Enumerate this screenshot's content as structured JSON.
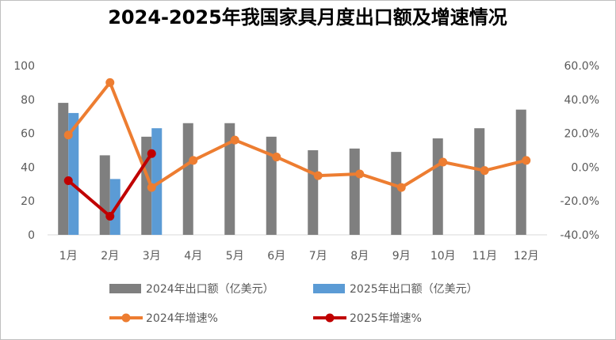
{
  "chart_data": {
    "type": "bar+line",
    "title": "2024-2025年我国家具月度出口额及增速情况",
    "categories": [
      "1月",
      "2月",
      "3月",
      "4月",
      "5月",
      "6月",
      "7月",
      "8月",
      "9月",
      "10月",
      "11月",
      "12月"
    ],
    "y_left": {
      "range": [
        0,
        100
      ],
      "ticks": [
        "0",
        "20",
        "40",
        "60",
        "80",
        "100"
      ],
      "tick_values": [
        0,
        20,
        40,
        60,
        80,
        100
      ]
    },
    "y_right": {
      "range": [
        -40,
        60
      ],
      "ticks": [
        "-40.0%",
        "-20.0%",
        "0.0%",
        "20.0%",
        "40.0%",
        "60.0%"
      ],
      "tick_values": [
        -40,
        -20,
        0,
        20,
        40,
        60
      ]
    },
    "bar_series": [
      {
        "name": "2024年出口额（亿美元）",
        "color": "#7f7f7f",
        "values": [
          78,
          47,
          58,
          66,
          66,
          58,
          50,
          51,
          49,
          57,
          63,
          74
        ]
      },
      {
        "name": "2025年出口额（亿美元）",
        "color": "#5b9bd5",
        "values": [
          72,
          33,
          63,
          null,
          null,
          null,
          null,
          null,
          null,
          null,
          null,
          null
        ]
      }
    ],
    "line_series": [
      {
        "name": "2024年增速%",
        "color": "#ed7d31",
        "values": [
          19,
          50,
          -12,
          4,
          16,
          6,
          -5,
          -4,
          -12,
          3,
          -2,
          4
        ]
      },
      {
        "name": "2025年增速%",
        "color": "#c00000",
        "values": [
          -8,
          -29,
          8,
          null,
          null,
          null,
          null,
          null,
          null,
          null,
          null,
          null
        ]
      }
    ],
    "grid": false,
    "legend_position": "bottom"
  }
}
